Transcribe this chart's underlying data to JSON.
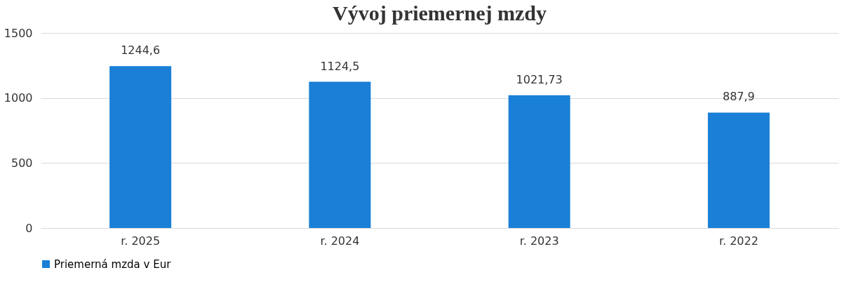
{
  "chart_data": {
    "type": "bar",
    "title": "Vývoj priemernej mzdy",
    "categories": [
      "r. 2025",
      "r. 2024",
      "r. 2023",
      "r. 2022"
    ],
    "series": [
      {
        "name": "Priemerná mzda v Eur",
        "color": "#1a7fd6",
        "values": [
          1244.6,
          1124.5,
          1021.73,
          887.9
        ]
      }
    ],
    "value_labels": [
      "1244,6",
      "1124,5",
      "1021,73",
      "887,9"
    ],
    "ylim": [
      0,
      1500
    ],
    "yticks": [
      0,
      500,
      1000,
      1500
    ],
    "grid": "y",
    "legend": "bottom"
  }
}
